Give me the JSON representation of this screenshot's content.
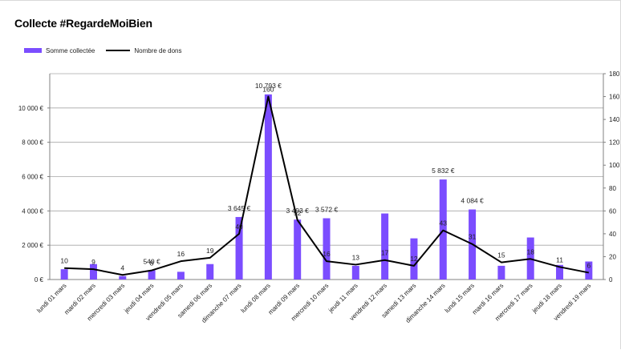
{
  "chart_data": {
    "type": "bar",
    "title": "Collecte #RegardeMoiBien",
    "categories": [
      "lundi 01 mars",
      "mardi 02 mars",
      "mercredi 03 mars",
      "jeudi 04 mars",
      "vendredi 05 mars",
      "samedi 06 mars",
      "dimanche 07 mars",
      "lundi 08 mars",
      "mardi 09 mars",
      "mercredi 10 mars",
      "jeudi 11 mars",
      "vendredi 12 mars",
      "samedi 13 mars",
      "dimanche 14 mars",
      "lundi 15 mars",
      "mardi 16 mars",
      "mercredi 17 mars",
      "jeudi 18 mars",
      "vendredi 19 mars"
    ],
    "series": [
      {
        "name": "Somme collectée",
        "type": "bar",
        "axis": "left",
        "color": "#7B4DFF",
        "values": [
          600,
          900,
          200,
          540,
          450,
          900,
          3645,
          10793,
          3493,
          3572,
          800,
          3850,
          2400,
          5832,
          4084,
          800,
          2450,
          850,
          1050
        ],
        "labels": [
          "",
          "",
          "",
          "540 €",
          "",
          "",
          "3 645 €",
          "10 793 €",
          "3 493 €",
          "3 572 €",
          "",
          "",
          "",
          "5 832 €",
          "4 084 €",
          "",
          "",
          "",
          ""
        ]
      },
      {
        "name": "Nombre de dons",
        "type": "line",
        "axis": "right",
        "color": "#000000",
        "values": [
          10,
          9,
          4,
          8,
          16,
          19,
          40,
          160,
          52,
          16,
          13,
          17,
          12,
          43,
          31,
          15,
          18,
          11,
          6
        ]
      }
    ],
    "yleft": {
      "ticks": [
        "0 €",
        "2 000 €",
        "4 000 €",
        "6 000 €",
        "8 000 €",
        "10 000 €"
      ],
      "range": [
        0,
        12000
      ],
      "step": 2000
    },
    "yright": {
      "ticks": [
        "0",
        "20",
        "40",
        "60",
        "80",
        "100",
        "120",
        "140",
        "160",
        "180"
      ],
      "range": [
        0,
        180
      ],
      "step": 20
    },
    "grid": true,
    "legend": "top-left"
  }
}
